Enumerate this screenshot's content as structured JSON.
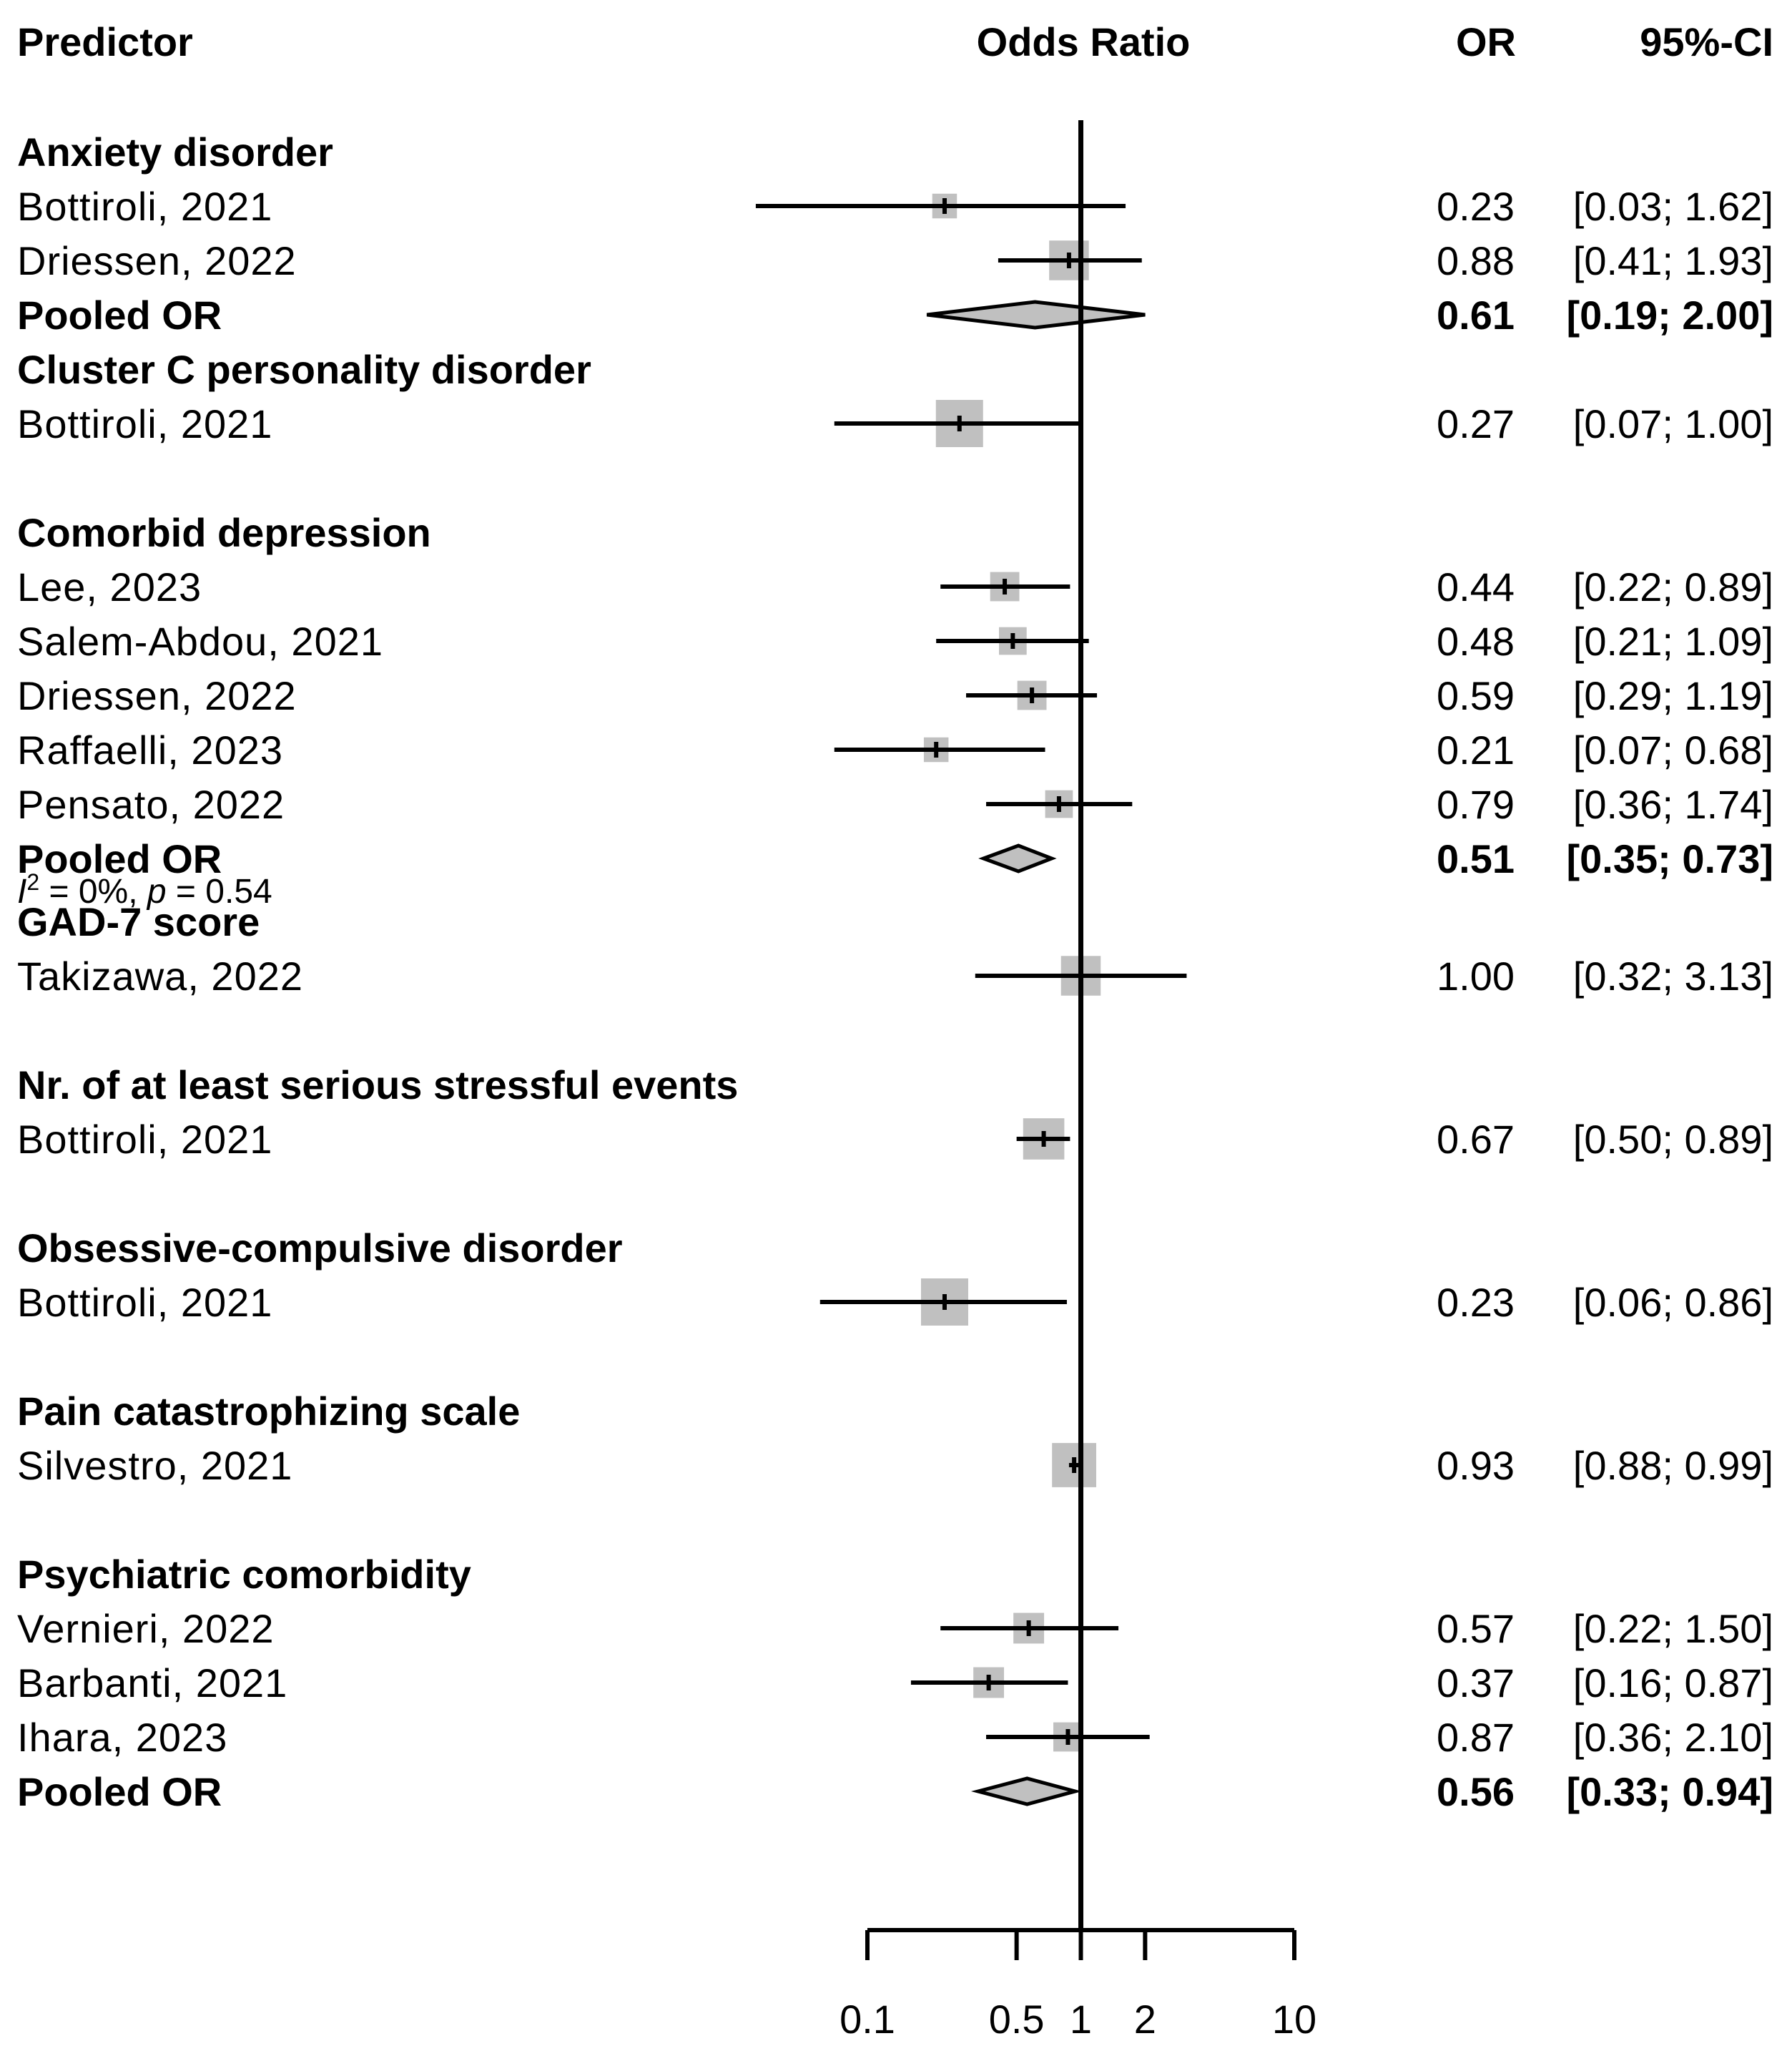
{
  "chart_data": {
    "type": "forest",
    "headers": {
      "predictor": "Predictor",
      "effect": "Odds Ratio",
      "or": "OR",
      "ci": "95%-CI"
    },
    "axis": {
      "scale": "log",
      "xlim": [
        0.1,
        10
      ],
      "ticks": [
        0.1,
        0.5,
        1,
        2,
        10
      ],
      "tick_labels": [
        "0.1",
        "0.5",
        "1",
        "2",
        "10"
      ],
      "reference_line": 1
    },
    "groups": [
      {
        "name": "Anxiety disorder",
        "studies": [
          {
            "label": "Bottiroli, 2021",
            "or": 0.23,
            "lo": 0.03,
            "hi": 1.62,
            "or_text": "0.23",
            "ci_text": "[0.03; 1.62]",
            "weight": 0.25
          },
          {
            "label": "Driessen, 2022",
            "or": 0.88,
            "lo": 0.41,
            "hi": 1.93,
            "or_text": "0.88",
            "ci_text": "[0.41; 1.93]",
            "weight": 0.75
          }
        ],
        "pooled": {
          "label": "Pooled OR",
          "or": 0.61,
          "lo": 0.19,
          "hi": 2.0,
          "or_text": "0.61",
          "ci_text": "[0.19; 2.00]"
        }
      },
      {
        "name": "Cluster C personality disorder",
        "studies": [
          {
            "label": "Bottiroli, 2021",
            "or": 0.27,
            "lo": 0.07,
            "hi": 1.0,
            "or_text": "0.27",
            "ci_text": "[0.07; 1.00]",
            "weight": 1.0
          }
        ]
      },
      {
        "name": "Comorbid depression",
        "studies": [
          {
            "label": "Lee, 2023",
            "or": 0.44,
            "lo": 0.22,
            "hi": 0.89,
            "or_text": "0.44",
            "ci_text": "[0.22; 0.89]",
            "weight": 0.4
          },
          {
            "label": "Salem-Abdou, 2021",
            "or": 0.48,
            "lo": 0.21,
            "hi": 1.09,
            "or_text": "0.48",
            "ci_text": "[0.21; 1.09]",
            "weight": 0.35
          },
          {
            "label": "Driessen, 2022",
            "or": 0.59,
            "lo": 0.29,
            "hi": 1.19,
            "or_text": "0.59",
            "ci_text": "[0.29; 1.19]",
            "weight": 0.4
          },
          {
            "label": "Raffaelli, 2023",
            "or": 0.21,
            "lo": 0.07,
            "hi": 0.68,
            "or_text": "0.21",
            "ci_text": "[0.07; 0.68]",
            "weight": 0.25
          },
          {
            "label": "Pensato, 2022",
            "or": 0.79,
            "lo": 0.36,
            "hi": 1.74,
            "or_text": "0.79",
            "ci_text": "[0.36; 1.74]",
            "weight": 0.35
          }
        ],
        "pooled": {
          "label": "Pooled OR",
          "or": 0.51,
          "lo": 0.35,
          "hi": 0.73,
          "or_text": "0.51",
          "ci_text": "[0.35; 0.73]"
        },
        "heterogeneity": {
          "i2_symbol": "I",
          "i2_sup": "2",
          "i2_text": " = 0%, ",
          "p_symbol": "p",
          "p_text": " = 0.54"
        }
      },
      {
        "name": "GAD-7 score",
        "studies": [
          {
            "label": "Takizawa, 2022",
            "or": 1.0,
            "lo": 0.32,
            "hi": 3.13,
            "or_text": "1.00",
            "ci_text": "[0.32; 3.13]",
            "weight": 0.75
          }
        ]
      },
      {
        "name": "Nr. of at least serious stressful events",
        "studies": [
          {
            "label": "Bottiroli, 2021",
            "or": 0.67,
            "lo": 0.5,
            "hi": 0.89,
            "or_text": "0.67",
            "ci_text": "[0.50; 0.89]",
            "weight": 0.8
          }
        ]
      },
      {
        "name": "Obsessive-compulsive disorder",
        "studies": [
          {
            "label": "Bottiroli, 2021",
            "or": 0.23,
            "lo": 0.06,
            "hi": 0.86,
            "or_text": "0.23",
            "ci_text": "[0.06; 0.86]",
            "weight": 1.0
          }
        ]
      },
      {
        "name": "Pain catastrophizing scale",
        "studies": [
          {
            "label": "Silvestro, 2021",
            "or": 0.93,
            "lo": 0.88,
            "hi": 0.99,
            "or_text": "0.93",
            "ci_text": "[0.88; 0.99]",
            "weight": 0.9
          }
        ]
      },
      {
        "name": "Psychiatric comorbidity",
        "studies": [
          {
            "label": "Vernieri, 2022",
            "or": 0.57,
            "lo": 0.22,
            "hi": 1.5,
            "or_text": "0.57",
            "ci_text": "[0.22; 1.50]",
            "weight": 0.45
          },
          {
            "label": "Barbanti, 2021",
            "or": 0.37,
            "lo": 0.16,
            "hi": 0.87,
            "or_text": "0.37",
            "ci_text": "[0.16; 0.87]",
            "weight": 0.45
          },
          {
            "label": "Ihara, 2023",
            "or": 0.87,
            "lo": 0.36,
            "hi": 2.1,
            "or_text": "0.87",
            "ci_text": "[0.36; 2.10]",
            "weight": 0.4
          }
        ],
        "pooled": {
          "label": "Pooled OR",
          "or": 0.56,
          "lo": 0.33,
          "hi": 0.94,
          "or_text": "0.56",
          "ci_text": "[0.33; 0.94]"
        }
      }
    ],
    "colors": {
      "square": "#c0c0c0",
      "diamond_fill": "#c0c0c0",
      "line": "#000000"
    }
  }
}
